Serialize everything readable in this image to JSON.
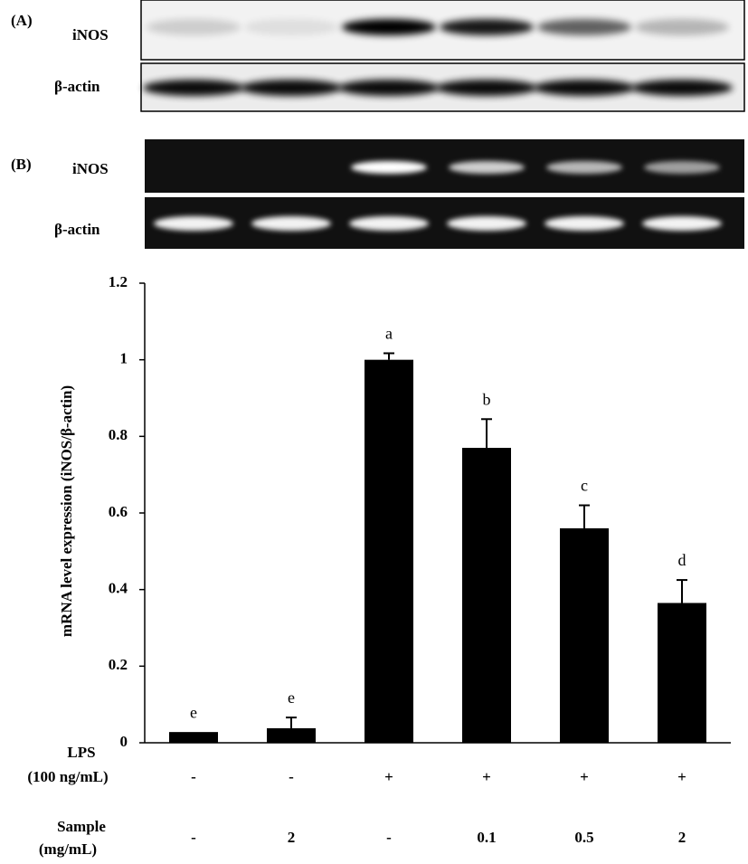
{
  "panel_a": {
    "label": "(A)",
    "rows": [
      "iNOS",
      "β-actin"
    ]
  },
  "panel_b": {
    "label": "(B)",
    "rows": [
      "iNOS",
      "β-actin"
    ]
  },
  "chart_data": {
    "type": "bar",
    "y_label": "mRNA level expression (iNOS/β-actin)",
    "values": [
      0.028,
      0.038,
      1.0,
      0.77,
      0.56,
      0.365
    ],
    "errors": [
      0,
      0.028,
      0.017,
      0.075,
      0.06,
      0.06
    ],
    "letters": [
      "e",
      "e",
      "a",
      "b",
      "c",
      "d"
    ],
    "color": "#000000",
    "ylim": [
      0,
      1.2
    ],
    "yticks": [
      0,
      0.2,
      0.4,
      0.6,
      0.8,
      1,
      1.2
    ],
    "conditions": [
      {
        "name": [
          "LPS",
          "(100 ng/mL)"
        ],
        "labels": [
          "-",
          "-",
          "+",
          "+",
          "+",
          "+"
        ]
      },
      {
        "name": [
          "Sample",
          "(mg/mL)"
        ],
        "labels": [
          "-",
          "2",
          "-",
          "0.1",
          "0.5",
          "2"
        ]
      }
    ]
  }
}
